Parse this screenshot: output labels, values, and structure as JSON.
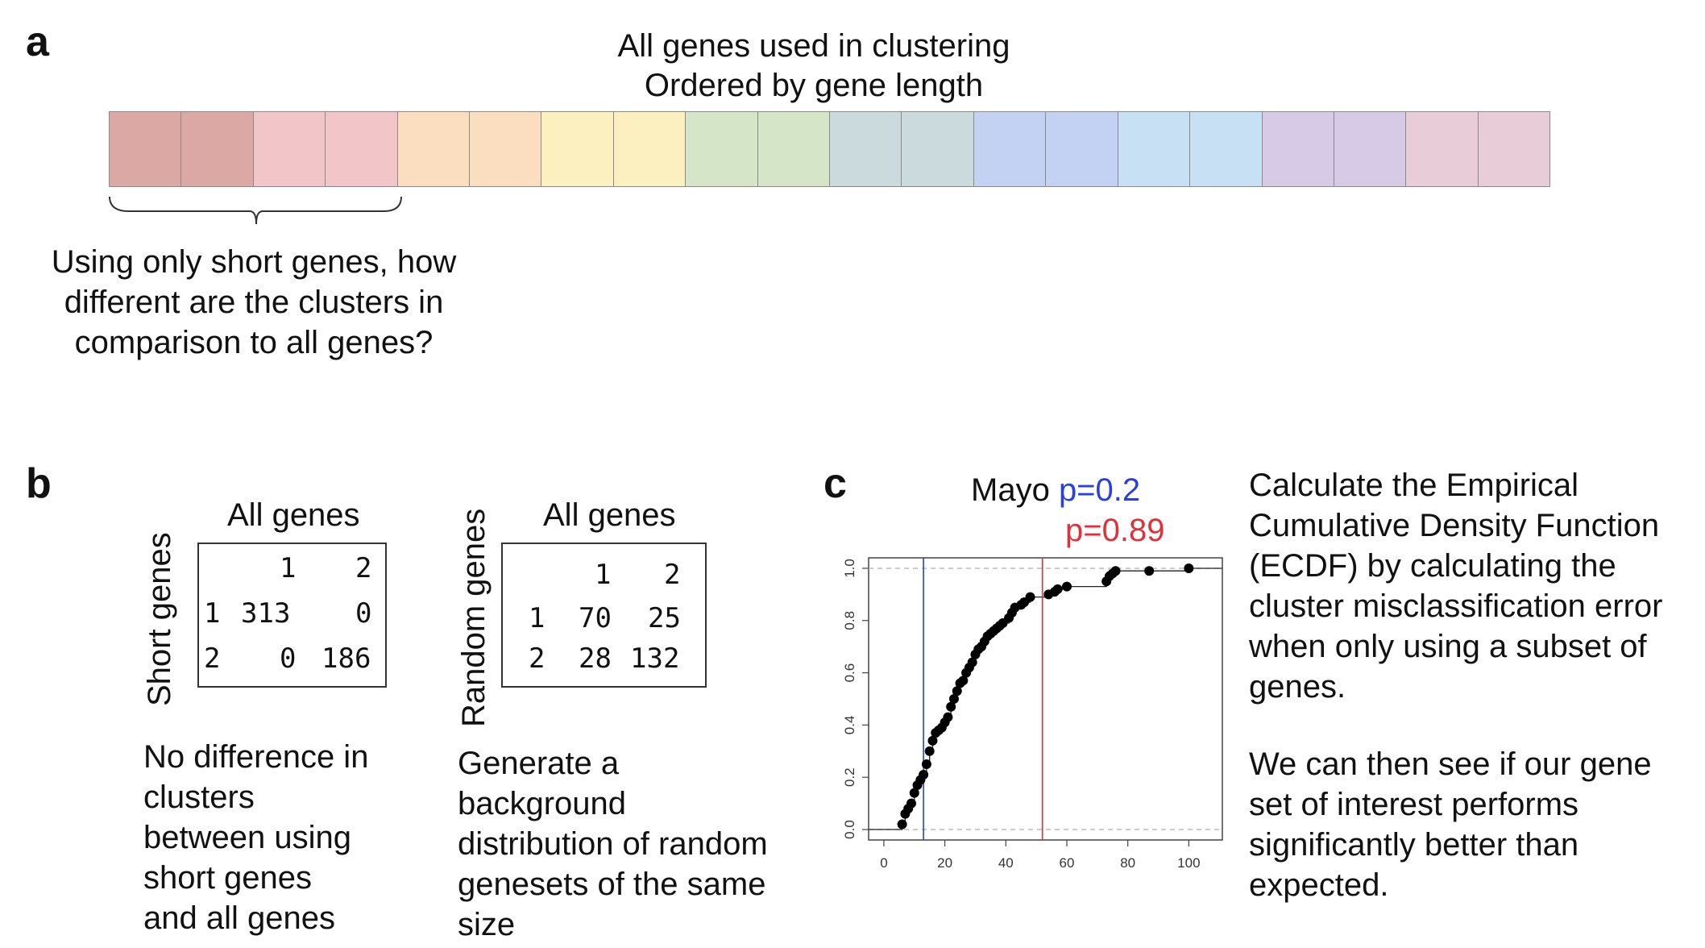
{
  "panel_a": {
    "letter": "a",
    "title_line1": "All genes used in clustering",
    "title_line2": "Ordered by gene length",
    "cells": [
      "#dba8a4",
      "#dba8a4",
      "#f2c6c8",
      "#f2c6c8",
      "#fbdec0",
      "#fbdec0",
      "#fdf0c0",
      "#fdf0c0",
      "#d5e6c8",
      "#d5e6c8",
      "#cbdbdd",
      "#cbdbdd",
      "#c3d2f3",
      "#c3d2f3",
      "#c7e0f3",
      "#c7e0f3",
      "#d6cae6",
      "#d6cae6",
      "#e8ccd8",
      "#e8ccd8"
    ],
    "caption_line1": "Using only short genes, how",
    "caption_line2": "different are the clusters in",
    "caption_line3": "comparison to all genes?"
  },
  "panel_b": {
    "letter": "b",
    "table1": {
      "col_title": "All genes",
      "row_title": "Short genes",
      "header": [
        "",
        "1",
        "2"
      ],
      "rows": [
        [
          "1",
          "313",
          "0"
        ],
        [
          "2",
          "0",
          "186"
        ]
      ]
    },
    "table2": {
      "col_title": "All genes",
      "row_title": "Random genes",
      "header": [
        "",
        "1",
        "2"
      ],
      "rows": [
        [
          "1",
          "70",
          "25"
        ],
        [
          "2",
          "28",
          "132"
        ]
      ]
    },
    "caption1": [
      "No difference in",
      "clusters",
      "between using",
      "short genes",
      "and all genes"
    ],
    "caption2": [
      "Generate a",
      "background",
      "distribution of random",
      "genesets of the same",
      "size"
    ]
  },
  "panel_c": {
    "letter": "c",
    "label_mayo": "Mayo",
    "p_blue": "p=0.2",
    "p_red": "p=0.89",
    "description": [
      "Calculate the Empirical",
      "Cumulative Density Function",
      "(ECDF) by calculating the",
      "cluster misclassification error",
      "when only using a subset of",
      "genes."
    ],
    "description2": [
      "We can then see if our gene",
      "set of interest performs",
      "significantly better than",
      "expected."
    ]
  },
  "chart_data": {
    "type": "scatter",
    "title": "",
    "xlabel": "",
    "ylabel": "",
    "xlim": [
      -5,
      111
    ],
    "ylim": [
      -0.04,
      1.04
    ],
    "x_ticks": [
      "0",
      "20",
      "40",
      "60",
      "80",
      "100"
    ],
    "y_ticks": [
      "0.0",
      "0.2",
      "0.4",
      "0.6",
      "0.8",
      "1.0"
    ],
    "vlines": [
      {
        "x": 13,
        "color": "#2b3fe0"
      },
      {
        "x": 52,
        "color": "#e0303a"
      }
    ],
    "hlines_dashed": [
      0,
      1
    ],
    "step_line": true,
    "points": [
      [
        6,
        0.02
      ],
      [
        7,
        0.06
      ],
      [
        8,
        0.08
      ],
      [
        9,
        0.1
      ],
      [
        10,
        0.14
      ],
      [
        11,
        0.17
      ],
      [
        12,
        0.19
      ],
      [
        13,
        0.21
      ],
      [
        14,
        0.25
      ],
      [
        15,
        0.3
      ],
      [
        16,
        0.34
      ],
      [
        17,
        0.37
      ],
      [
        18,
        0.38
      ],
      [
        19,
        0.39
      ],
      [
        20,
        0.41
      ],
      [
        21,
        0.43
      ],
      [
        22,
        0.47
      ],
      [
        23,
        0.5
      ],
      [
        24,
        0.53
      ],
      [
        25,
        0.56
      ],
      [
        26,
        0.57
      ],
      [
        27,
        0.6
      ],
      [
        28,
        0.62
      ],
      [
        29,
        0.64
      ],
      [
        30,
        0.67
      ],
      [
        31,
        0.69
      ],
      [
        32,
        0.7
      ],
      [
        33,
        0.72
      ],
      [
        34,
        0.74
      ],
      [
        35,
        0.75
      ],
      [
        36,
        0.76
      ],
      [
        37,
        0.77
      ],
      [
        38,
        0.78
      ],
      [
        39,
        0.79
      ],
      [
        41,
        0.81
      ],
      [
        42,
        0.83
      ],
      [
        43,
        0.85
      ],
      [
        45,
        0.86
      ],
      [
        46,
        0.87
      ],
      [
        48,
        0.89
      ],
      [
        54,
        0.9
      ],
      [
        56,
        0.91
      ],
      [
        57,
        0.92
      ],
      [
        60,
        0.93
      ],
      [
        73,
        0.95
      ],
      [
        74,
        0.97
      ],
      [
        75,
        0.98
      ],
      [
        76,
        0.99
      ],
      [
        87,
        0.99
      ],
      [
        100,
        1.0
      ]
    ]
  }
}
